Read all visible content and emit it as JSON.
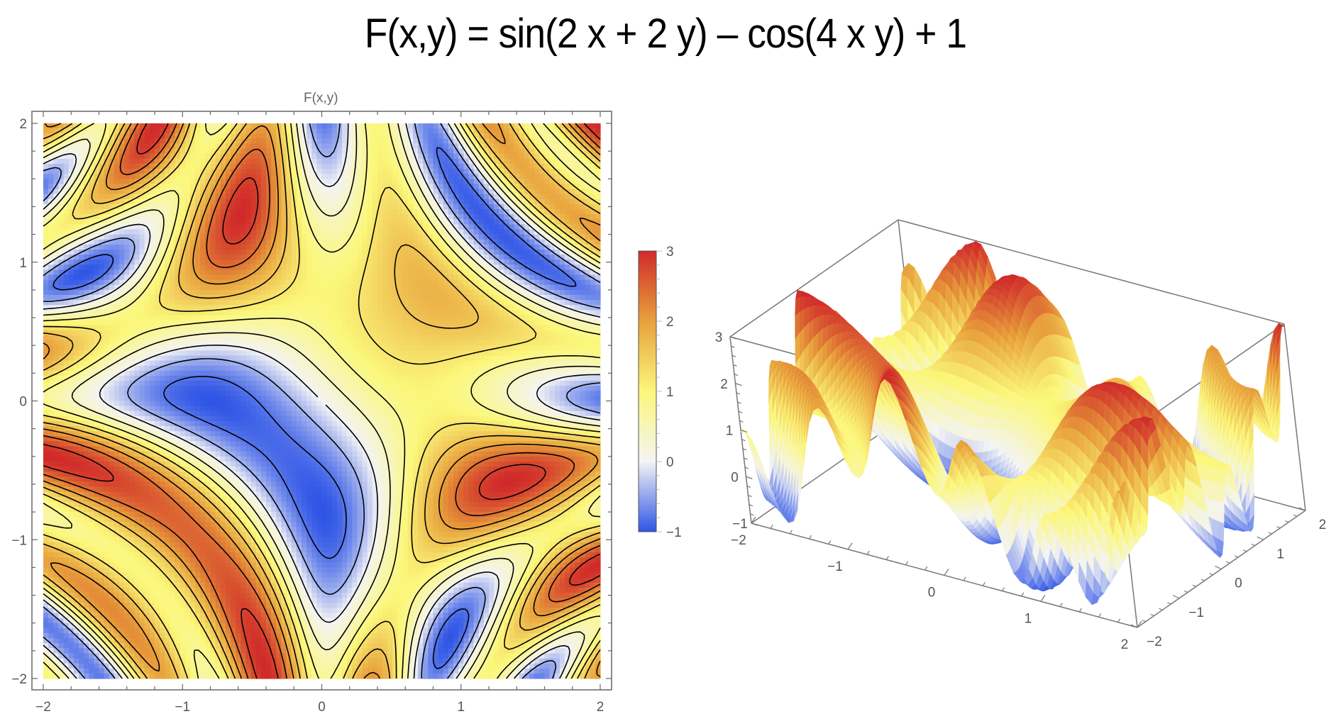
{
  "title": "F(x,y) = sin(2 x + 2 y) – cos(4 x y) + 1",
  "chart_data": [
    {
      "type": "heatmap",
      "subtype": "contour-density",
      "title": "F(x,y)",
      "function": "sin(2x+2y) - cos(4xy) + 1",
      "xlabel": "",
      "ylabel": "",
      "xlim": [
        -2,
        2
      ],
      "ylim": [
        -2,
        2
      ],
      "x_ticks": [
        "−2",
        "−1",
        "0",
        "1",
        "2"
      ],
      "y_ticks": [
        "−2",
        "−1",
        "0",
        "1",
        "2"
      ],
      "colorbar": {
        "range": [
          -1,
          3
        ],
        "ticks": [
          "−1",
          "0",
          "1",
          "2",
          "3"
        ],
        "colors": [
          "#2f55e6",
          "#f4f4f4",
          "#fbf77a",
          "#e8a13c",
          "#d02a2a"
        ]
      },
      "contours": true,
      "grid": false
    },
    {
      "type": "surface3d",
      "function": "sin(2x+2y) - cos(4xy) + 1",
      "xlim": [
        -2,
        2
      ],
      "ylim": [
        -2,
        2
      ],
      "zlim": [
        -1,
        3
      ],
      "x_ticks": [
        "−2",
        "−1",
        "0",
        "1",
        "2"
      ],
      "y_ticks": [
        "−2",
        "−1",
        "0",
        "1",
        "2"
      ],
      "z_ticks": [
        "−1",
        "0",
        "1",
        "2",
        "3"
      ],
      "mesh": "contour lines",
      "colormap": "blue-white-yellow-red"
    }
  ],
  "density": {
    "label": "F(x,y)"
  }
}
